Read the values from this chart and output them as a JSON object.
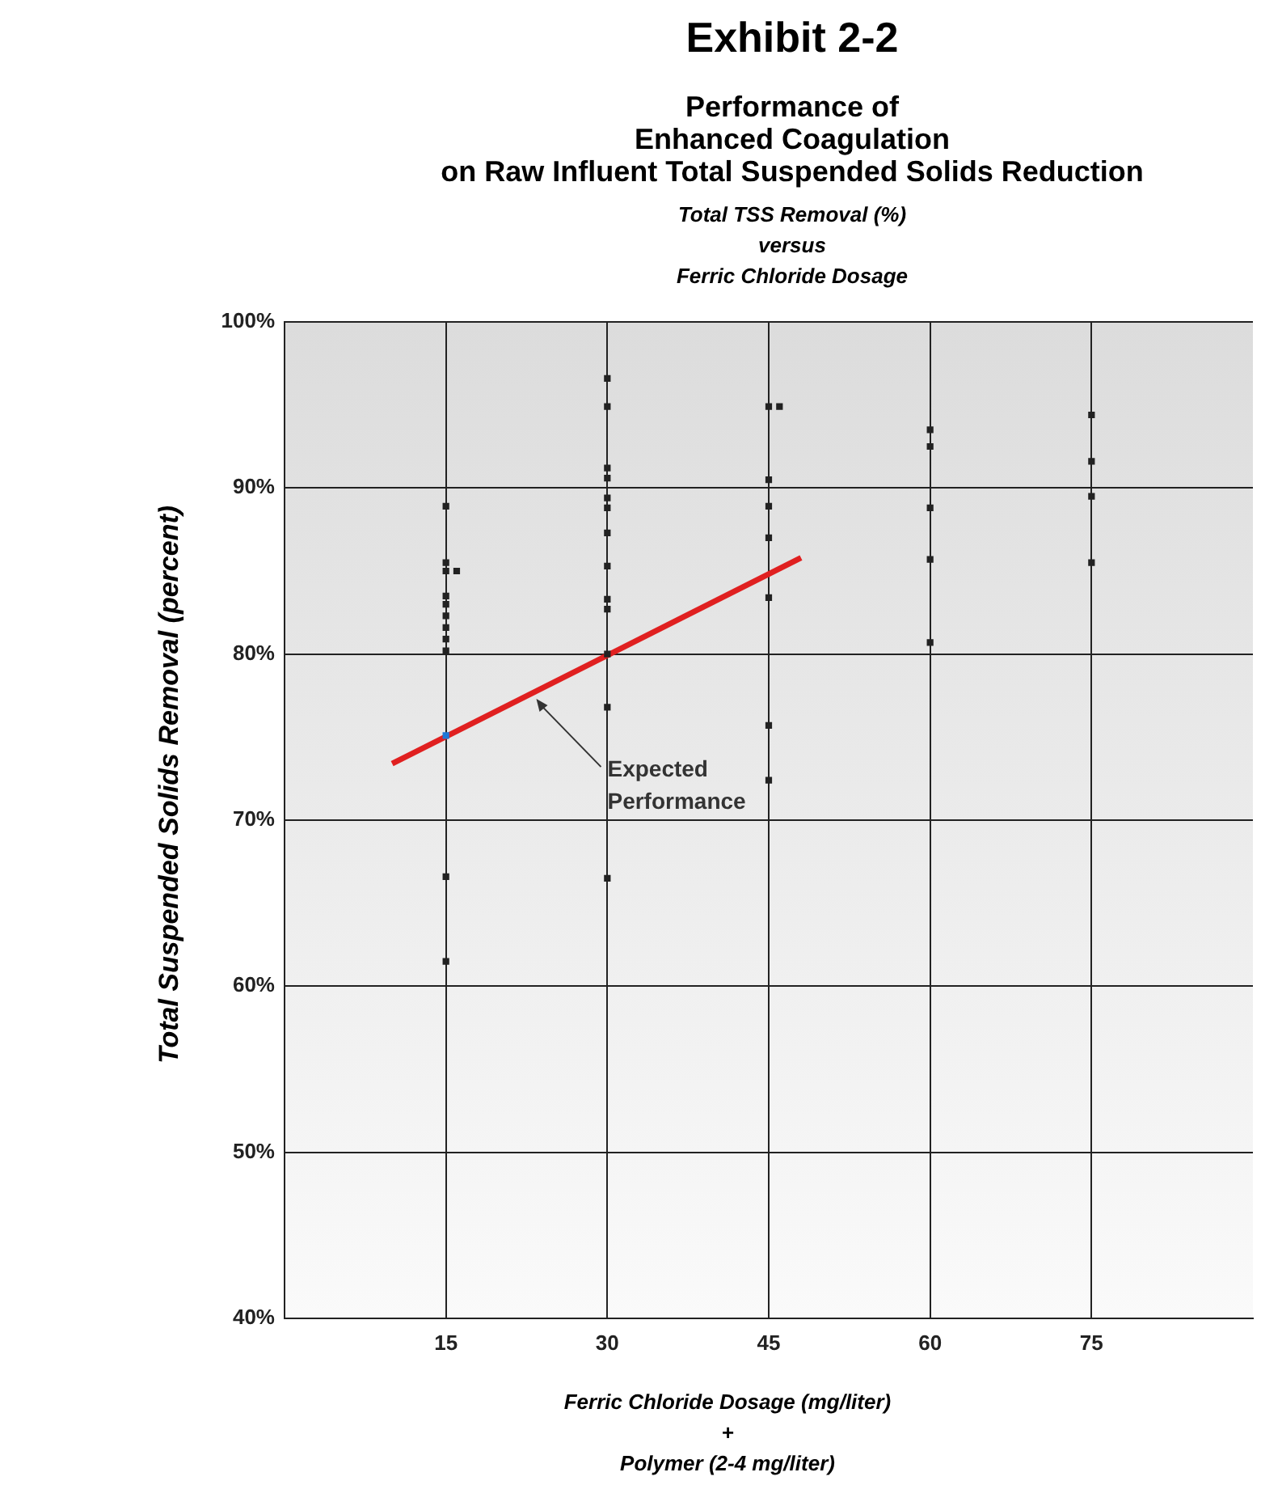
{
  "chart_data": {
    "type": "scatter",
    "title": "Exhibit 2-2",
    "subtitle": "Performance of\nEnhanced Coagulation\non Raw Influent Total Suspended Solids Reduction",
    "annotations": [
      "Total TSS Removal (%)\nversus\nFerric Chloride Dosage",
      {
        "text": "Expected\nPerformance",
        "x": 23.4,
        "y": 77.3
      }
    ],
    "xlabel": "Ferric Chloride Dosage (mg/liter)\n+\nPolymer (2-4 mg/liter)",
    "ylabel": "Total Suspended Solids Removal (percent)",
    "xlim": [
      0,
      90
    ],
    "xticks": [
      15,
      30,
      45,
      60,
      75
    ],
    "ylim": [
      40,
      100
    ],
    "yticks": [
      {
        "value": 40,
        "label": "40%"
      },
      {
        "value": 50,
        "label": "50%"
      },
      {
        "value": 60,
        "label": "60%"
      },
      {
        "value": 70,
        "label": "70%"
      },
      {
        "value": 80,
        "label": "80%"
      },
      {
        "value": 90,
        "label": "90%"
      },
      {
        "value": 100,
        "label": "100%"
      }
    ],
    "grid": true,
    "legend": false,
    "marker": "square",
    "series": [
      {
        "color": "#222222",
        "x": [
          15,
          15,
          15,
          16,
          15,
          15,
          15,
          15,
          15,
          15,
          15,
          15,
          30,
          30,
          30,
          30,
          30,
          30,
          30,
          30,
          30,
          30,
          30,
          30,
          30,
          45,
          46,
          45,
          45,
          45,
          45,
          45,
          45,
          60,
          60,
          60,
          60,
          60,
          75,
          75,
          75,
          75
        ],
        "values": [
          88.9,
          85.5,
          85.0,
          85.0,
          83.5,
          83.0,
          82.3,
          81.6,
          80.9,
          80.2,
          66.6,
          61.5,
          96.6,
          94.9,
          91.2,
          90.6,
          89.4,
          88.8,
          87.3,
          85.3,
          83.3,
          82.7,
          80.0,
          76.8,
          66.5,
          94.9,
          94.9,
          90.5,
          88.9,
          87.0,
          83.4,
          75.7,
          72.4,
          93.5,
          92.5,
          88.8,
          85.7,
          80.7,
          94.4,
          91.6,
          89.5,
          85.5
        ]
      },
      {
        "color": "#1e78d7",
        "x": [
          15
        ],
        "values": [
          75.1
        ]
      },
      {
        "type": "line",
        "color": "#e02020",
        "marker": "none",
        "x": [
          10,
          48
        ],
        "values": [
          73.4,
          85.8
        ]
      }
    ]
  }
}
